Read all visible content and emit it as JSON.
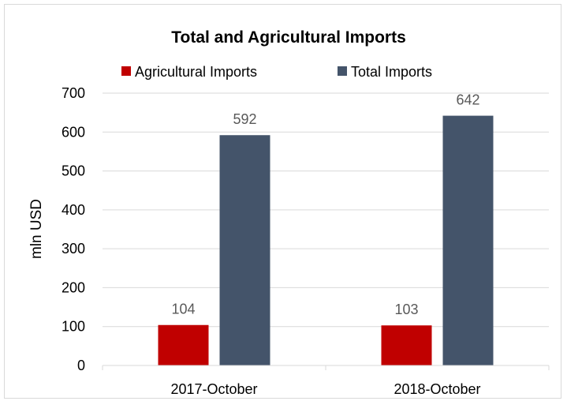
{
  "chart_data": {
    "type": "bar",
    "title": "Total and Agricultural Imports",
    "xlabel": "",
    "ylabel": "mln USD",
    "categories": [
      "2017-October",
      "2018-October"
    ],
    "series": [
      {
        "name": "Agricultural Imports",
        "values": [
          104,
          103
        ],
        "color": "#c00000"
      },
      {
        "name": "Total Imports",
        "values": [
          592,
          642
        ],
        "color": "#44546a"
      }
    ],
    "ylim": [
      0,
      700
    ],
    "yticks": [
      0,
      100,
      200,
      300,
      400,
      500,
      600,
      700
    ],
    "ytick_labels": [
      "0",
      "100",
      "200",
      "300",
      "400",
      "500",
      "600",
      "700"
    ],
    "data_labels": [
      [
        "104",
        "103"
      ],
      [
        "592",
        "642"
      ]
    ],
    "grid": true,
    "legend_position": "top"
  }
}
